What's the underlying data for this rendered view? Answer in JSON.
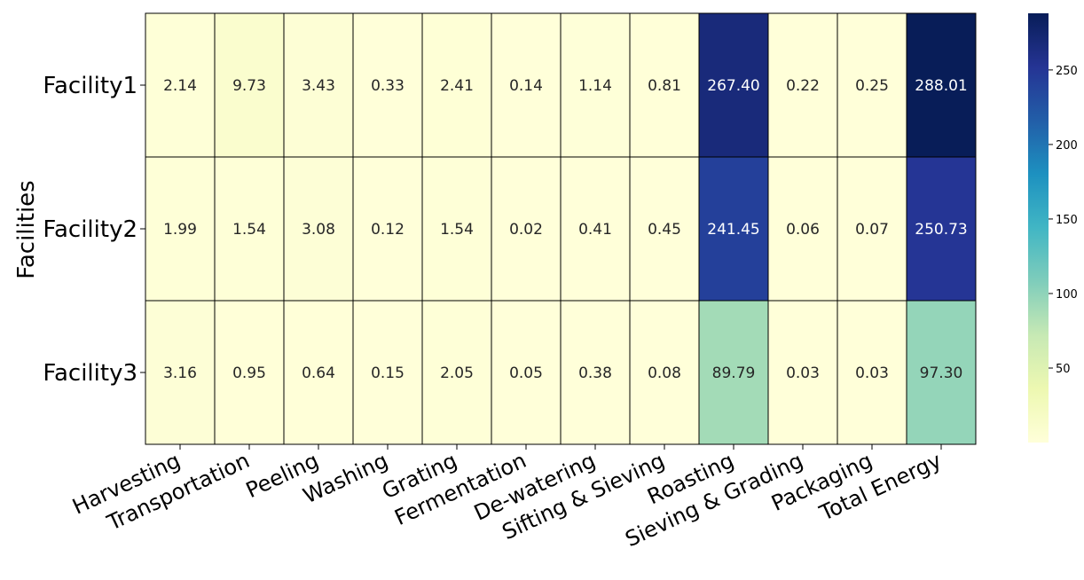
{
  "chart_data": {
    "type": "heatmap",
    "title": "",
    "ylabel": "Facilities",
    "xlabel": "",
    "rows": [
      "Facility1",
      "Facility2",
      "Facility3"
    ],
    "columns": [
      "Harvesting",
      "Transportation",
      "Peeling",
      "Washing",
      "Grating",
      "Fermentation",
      "De-watering",
      "Sifting & Sieving",
      "Roasting",
      "Sieving & Grading",
      "Packaging",
      "Total Energy"
    ],
    "values": [
      [
        2.14,
        9.73,
        3.43,
        0.33,
        2.41,
        0.14,
        1.14,
        0.81,
        267.4,
        0.22,
        0.25,
        288.01
      ],
      [
        1.99,
        1.54,
        3.08,
        0.12,
        1.54,
        0.02,
        0.41,
        0.45,
        241.45,
        0.06,
        0.07,
        250.73
      ],
      [
        3.16,
        0.95,
        0.64,
        0.15,
        2.05,
        0.05,
        0.38,
        0.08,
        89.79,
        0.03,
        0.03,
        97.3
      ]
    ],
    "value_format": "2 decimals",
    "colormap": "YlGnBu",
    "colorbar": {
      "range": [
        0.02,
        288.01
      ],
      "ticks": [
        50,
        100,
        150,
        200,
        250
      ]
    },
    "grid": true,
    "cell_borders": "#000000"
  }
}
